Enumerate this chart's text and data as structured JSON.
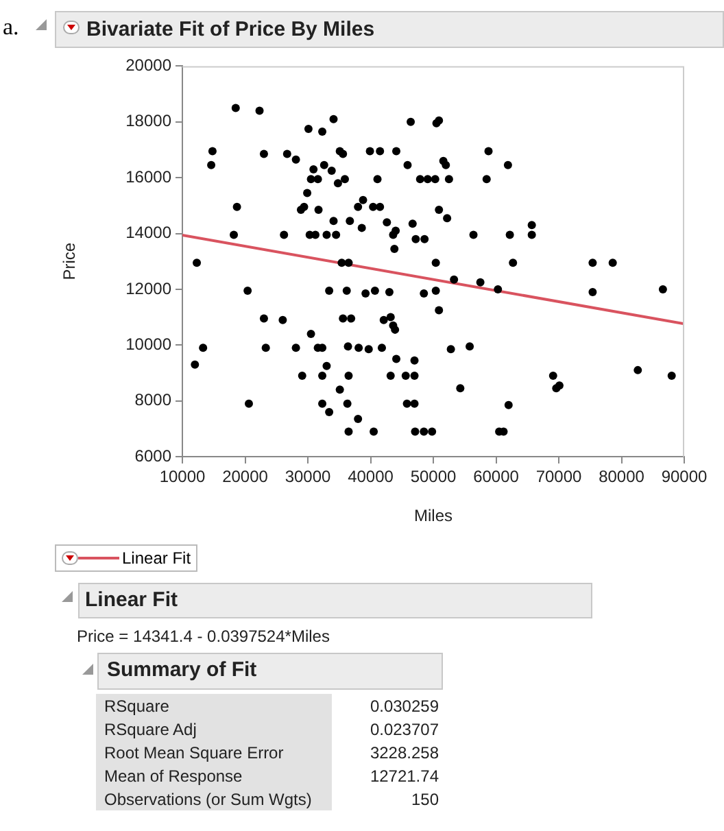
{
  "chart_data": {
    "type": "scatter",
    "title": "Bivariate Fit of Price By Miles",
    "xlabel": "Miles",
    "ylabel": "Price",
    "annotations": [
      "a.",
      "Linear Fit",
      "Price = 14341.4 - 0.0397524*Miles",
      "Summary of Fit",
      "RSquare",
      "0.030259",
      "RSquare Adj",
      "0.023707",
      "Root Mean Square Error",
      "3228.258",
      "Mean of Response",
      "12721.74",
      "Observations (or Sum Wgts)",
      "150"
    ],
    "xlim": [
      10000,
      90000
    ],
    "xticks": [
      10000,
      20000,
      30000,
      40000,
      50000,
      60000,
      70000,
      80000,
      90000
    ],
    "ylim": [
      6000,
      20000
    ],
    "yticks": [
      6000,
      8000,
      10000,
      12000,
      14000,
      16000,
      18000,
      20000
    ],
    "grid": false,
    "legend": "bottom",
    "series": [
      {
        "marker": "circle",
        "color": "#000000",
        "x": [
          18500,
          22300,
          34100,
          30100,
          32300,
          46400,
          50500,
          50900,
          14800,
          14600,
          23000,
          26700,
          28100,
          35100,
          35600,
          39900,
          41500,
          44100,
          45900,
          30900,
          32600,
          33800,
          30500,
          31600,
          34800,
          35900,
          41100,
          47900,
          49100,
          50300,
          52500,
          29900,
          38800,
          38000,
          28900,
          29400,
          18700,
          31700,
          40400,
          41500,
          34100,
          36700,
          42600,
          46700,
          38600,
          18200,
          26200,
          30300,
          31200,
          33000,
          34500,
          43600,
          44000,
          47200,
          48600,
          43800,
          12300,
          35400,
          36500,
          50400,
          58800,
          61900,
          51600,
          52000,
          58500,
          50900,
          52200,
          56400,
          62200,
          65700,
          65700,
          62700,
          75400,
          78600,
          53300,
          57500,
          60300,
          86600,
          20400,
          33400,
          36200,
          39200,
          40700,
          43000,
          48500,
          50400,
          50900,
          23000,
          26000,
          35600,
          36900,
          42100,
          43200,
          43600,
          43900,
          30500,
          13300,
          23300,
          28100,
          31600,
          32300,
          36400,
          38100,
          39700,
          41800,
          12000,
          44100,
          47000,
          33000,
          29100,
          32300,
          36500,
          43200,
          45600,
          47000,
          35100,
          20600,
          32300,
          36300,
          33400,
          45800,
          47000,
          38000,
          36500,
          40500,
          47100,
          48500,
          49800,
          75400,
          52800,
          55800,
          82600,
          88000,
          69100,
          69600,
          70100,
          54300,
          62000,
          60500,
          61200
        ],
        "values": [
          18500,
          18400,
          18100,
          17750,
          17650,
          18000,
          17950,
          18050,
          16950,
          16450,
          16850,
          16850,
          16650,
          16950,
          16850,
          16950,
          16950,
          16950,
          16450,
          16300,
          16450,
          16250,
          15950,
          15950,
          15800,
          15950,
          15950,
          15950,
          15950,
          15950,
          15950,
          15450,
          15200,
          14950,
          14850,
          14950,
          14950,
          14850,
          14950,
          14950,
          14450,
          14450,
          14400,
          14350,
          14200,
          13950,
          13950,
          13950,
          13950,
          13950,
          13950,
          13950,
          14100,
          13800,
          13800,
          13450,
          12950,
          12950,
          12950,
          12950,
          16950,
          16450,
          16600,
          16450,
          15950,
          14850,
          14550,
          13950,
          13950,
          14300,
          13950,
          12950,
          12950,
          12950,
          12350,
          12250,
          12000,
          12000,
          11950,
          11950,
          11950,
          11850,
          11950,
          11900,
          11850,
          11950,
          11250,
          10950,
          10900,
          10950,
          10950,
          10900,
          11000,
          10700,
          10550,
          10400,
          9900,
          9900,
          9900,
          9900,
          9900,
          9950,
          9900,
          9850,
          9900,
          9300,
          9500,
          9450,
          9250,
          8900,
          8900,
          8900,
          8900,
          8900,
          8900,
          8400,
          7900,
          7900,
          7900,
          7600,
          7900,
          7900,
          7350,
          6900,
          6900,
          6900,
          6900,
          6900,
          11900,
          9850,
          9950,
          9100,
          8900,
          8900,
          8450,
          8550,
          8450,
          7850,
          6900,
          6900
        ]
      },
      {
        "type": "line",
        "name": "Linear Fit",
        "color": "#d9535f",
        "x": [
          10000,
          90000
        ],
        "values": [
          13940,
          10760
        ]
      }
    ]
  }
}
